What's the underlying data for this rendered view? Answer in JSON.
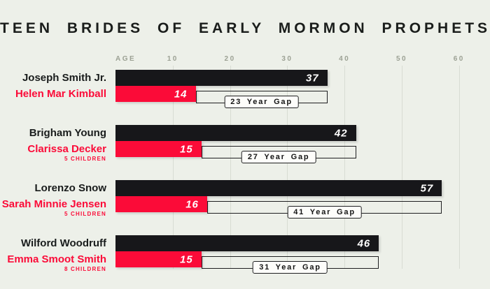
{
  "title": "TEEN BRIDES OF EARLY MORMON PROPHETS",
  "axis": {
    "label": "AGE",
    "ticks": [
      10,
      20,
      30,
      40,
      50,
      60
    ]
  },
  "colors": {
    "background": "#edf0e9",
    "prophet_bar": "#17171a",
    "bride_bar": "#fb0b38",
    "gridline": "#d8dcd3",
    "axis_text": "#9ca194",
    "title_text": "#1a1d1b"
  },
  "chart_data": {
    "type": "bar",
    "orientation": "horizontal",
    "title": "TEEN BRIDES OF EARLY MORMON PROPHETS",
    "xlabel": "AGE",
    "xlim": [
      0,
      63
    ],
    "xticks": [
      10,
      20,
      30,
      40,
      50,
      60
    ],
    "grid": true,
    "groups": [
      {
        "prophet": "Joseph Smith Jr.",
        "prophet_age": 37,
        "bride": "Helen Mar Kimball",
        "bride_age": 14,
        "children": "",
        "gap_label": "23 Year Gap"
      },
      {
        "prophet": "Brigham Young",
        "prophet_age": 42,
        "bride": "Clarissa Decker",
        "bride_age": 15,
        "children": "5 CHILDREN",
        "gap_label": "27 Year Gap"
      },
      {
        "prophet": "Lorenzo Snow",
        "prophet_age": 57,
        "bride": "Sarah Minnie Jensen",
        "bride_age": 16,
        "children": "5 CHILDREN",
        "gap_label": "41 Year Gap"
      },
      {
        "prophet": "Wilford Woodruff",
        "prophet_age": 46,
        "bride": "Emma Smoot Smith",
        "bride_age": 15,
        "children": "8 CHILDREN",
        "gap_label": "31 Year Gap"
      }
    ]
  }
}
